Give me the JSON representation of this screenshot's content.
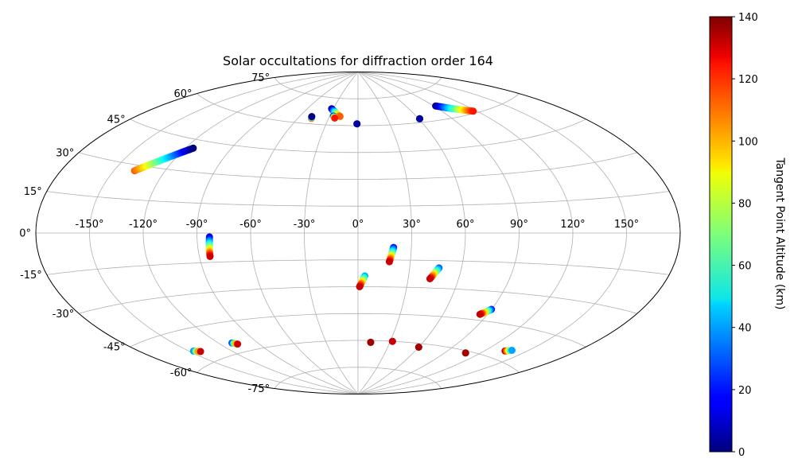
{
  "chart_data": {
    "type": "scatter",
    "title": "Solar occultations for diffraction order 164",
    "projection": "aitoff",
    "x_ticks": [
      "-150°",
      "-120°",
      "-90°",
      "-60°",
      "-30°",
      "0°",
      "30°",
      "60°",
      "90°",
      "120°",
      "150°"
    ],
    "y_ticks": [
      "75°",
      "60°",
      "45°",
      "30°",
      "15°",
      "0°",
      "-15°",
      "-30°",
      "-45°",
      "-60°",
      "-75°"
    ],
    "x_tick_values": [
      -150,
      -120,
      -90,
      -60,
      -30,
      0,
      30,
      60,
      90,
      120,
      150
    ],
    "y_tick_values": [
      75,
      60,
      45,
      30,
      15,
      0,
      -15,
      -30,
      -45,
      -60,
      -75
    ],
    "grid": true,
    "colorbar": {
      "label": "Tangent Point Altitude (km)",
      "min": 0,
      "max": 140,
      "ticks": [
        "0",
        "20",
        "40",
        "60",
        "80",
        "100",
        "120",
        "140"
      ],
      "tick_values": [
        0,
        20,
        40,
        60,
        80,
        100,
        120,
        140
      ],
      "colormap": "jet"
    },
    "tracks": [
      {
        "lon_start": -138,
        "lat_start": 27.5,
        "lon_end": -115,
        "lat_end": 41,
        "alt_start": 110,
        "alt_end": 0,
        "n": 40
      },
      {
        "lon_start": -47,
        "lat_start": 63,
        "lon_end": -48,
        "lat_end": 64,
        "alt_start": 110,
        "alt_end": 0,
        "n": 4
      },
      {
        "lon_start": -32,
        "lat_start": 69,
        "lon_end": -19,
        "lat_end": 65,
        "alt_start": 0,
        "alt_end": 110,
        "n": 18
      },
      {
        "lon_start": -26,
        "lat_start": 65,
        "lon_end": -24,
        "lat_end": 64,
        "alt_start": 10,
        "alt_end": 120,
        "n": 4
      },
      {
        "lon_start": -1,
        "lat_start": 61,
        "lon_end": -1,
        "lat_end": 61,
        "alt_start": 5,
        "alt_end": 5,
        "n": 2
      },
      {
        "lon_start": 61,
        "lat_start": 62,
        "lon_end": 61,
        "lat_end": 62,
        "alt_start": 5,
        "alt_end": 5,
        "n": 2
      },
      {
        "lon_start": 92,
        "lat_start": 67,
        "lon_end": 117,
        "lat_end": 61,
        "alt_start": 0,
        "alt_end": 120,
        "n": 30
      },
      {
        "lon_start": -83,
        "lat_start": -2,
        "lon_end": -84,
        "lat_end": -12,
        "alt_start": 10,
        "alt_end": 130,
        "n": 14
      },
      {
        "lon_start": 4,
        "lat_start": -24,
        "lon_end": 1,
        "lat_end": -30,
        "alt_start": 40,
        "alt_end": 130,
        "n": 10
      },
      {
        "lon_start": 20,
        "lat_start": -8,
        "lon_end": 18,
        "lat_end": -16,
        "alt_start": 20,
        "alt_end": 130,
        "n": 12
      },
      {
        "lon_start": 47,
        "lat_start": -19,
        "lon_end": 43,
        "lat_end": -25,
        "alt_start": 30,
        "alt_end": 130,
        "n": 12
      },
      {
        "lon_start": 90,
        "lat_start": -39,
        "lon_end": 85,
        "lat_end": -42,
        "alt_start": 20,
        "alt_end": 130,
        "n": 12
      },
      {
        "lon_start": -147,
        "lat_start": -54,
        "lon_end": -143,
        "lat_end": -55,
        "alt_start": 40,
        "alt_end": 130,
        "n": 4
      },
      {
        "lon_start": -110,
        "lat_start": -55,
        "lon_end": -107,
        "lat_end": -56,
        "alt_start": 30,
        "alt_end": 130,
        "n": 4
      },
      {
        "lon_start": 12,
        "lat_start": -61,
        "lon_end": 12,
        "lat_end": -61,
        "alt_start": 135,
        "alt_end": 135,
        "n": 2
      },
      {
        "lon_start": 32,
        "lat_start": -60,
        "lon_end": 32,
        "lat_end": -60,
        "alt_start": 130,
        "alt_end": 130,
        "n": 2
      },
      {
        "lon_start": 60,
        "lat_start": -62,
        "lon_end": 60,
        "lat_end": -62,
        "alt_start": 135,
        "alt_end": 135,
        "n": 2
      },
      {
        "lon_start": 108,
        "lat_start": -61,
        "lon_end": 108,
        "lat_end": -61,
        "alt_start": 135,
        "alt_end": 135,
        "n": 2
      },
      {
        "lon_start": 135,
        "lat_start": -56,
        "lon_end": 139,
        "lat_end": -55,
        "alt_start": 130,
        "alt_end": 40,
        "n": 5
      }
    ]
  }
}
